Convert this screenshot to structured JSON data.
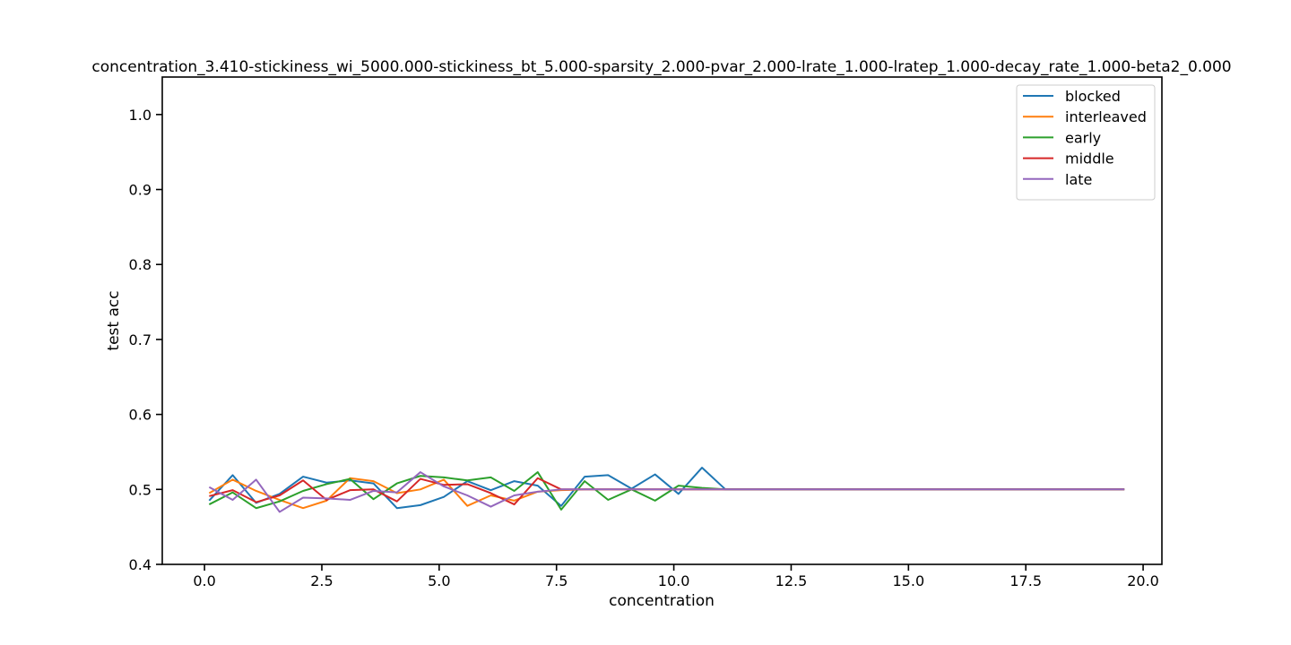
{
  "chart_data": {
    "type": "line",
    "title": "concentration_3.410-stickiness_wi_5000.000-stickiness_bt_5.000-sparsity_2.000-pvar_2.000-lrate_1.000-lratep_1.000-decay_rate_1.000-beta2_0.000",
    "xlabel": "concentration",
    "ylabel": "test acc",
    "xlim": [
      -0.9,
      20.4
    ],
    "ylim": [
      0.4,
      1.05
    ],
    "xticks": [
      0.0,
      2.5,
      5.0,
      7.5,
      10.0,
      12.5,
      15.0,
      17.5,
      20.0
    ],
    "xtick_labels": [
      "0.0",
      "2.5",
      "5.0",
      "7.5",
      "10.0",
      "12.5",
      "15.0",
      "17.5",
      "20.0"
    ],
    "yticks": [
      0.4,
      0.5,
      0.6,
      0.7,
      0.8,
      0.9,
      1.0
    ],
    "ytick_labels": [
      "0.4",
      "0.5",
      "0.6",
      "0.7",
      "0.8",
      "0.9",
      "1.0"
    ],
    "grid": false,
    "legend_position": "top-right",
    "x": [
      0.1,
      0.6,
      1.1,
      1.6,
      2.1,
      2.6,
      3.1,
      3.6,
      4.1,
      4.6,
      5.1,
      5.6,
      6.1,
      6.6,
      7.1,
      7.6,
      8.1,
      8.6,
      9.1,
      9.6,
      10.1,
      10.6,
      11.1,
      11.6,
      12.1,
      12.6,
      13.1,
      13.6,
      14.1,
      14.6,
      15.1,
      15.6,
      16.1,
      16.6,
      17.1,
      17.6,
      18.1,
      18.6,
      19.1,
      19.6
    ],
    "series": [
      {
        "name": "blocked",
        "color": "#1f77b4",
        "values": [
          0.485,
          0.519,
          0.482,
          0.494,
          0.517,
          0.509,
          0.512,
          0.508,
          0.475,
          0.479,
          0.49,
          0.511,
          0.499,
          0.511,
          0.505,
          0.478,
          0.517,
          0.519,
          0.501,
          0.52,
          0.494,
          0.529,
          0.5,
          0.5,
          0.5,
          0.5,
          0.5,
          0.5,
          0.5,
          0.5,
          0.5,
          0.5,
          0.5,
          0.5,
          0.5,
          0.5,
          0.5,
          0.5,
          0.5,
          0.5
        ]
      },
      {
        "name": "interleaved",
        "color": "#ff7f0e",
        "values": [
          0.495,
          0.513,
          0.498,
          0.486,
          0.475,
          0.485,
          0.515,
          0.511,
          0.495,
          0.5,
          0.513,
          0.478,
          0.492,
          0.485,
          0.497,
          0.499,
          0.5,
          0.5,
          0.5,
          0.5,
          0.5,
          0.5,
          0.5,
          0.5,
          0.5,
          0.5,
          0.5,
          0.5,
          0.5,
          0.5,
          0.5,
          0.5,
          0.5,
          0.5,
          0.5,
          0.5,
          0.5,
          0.5,
          0.5,
          0.5
        ]
      },
      {
        "name": "early",
        "color": "#2ca02c",
        "values": [
          0.48,
          0.496,
          0.475,
          0.484,
          0.498,
          0.507,
          0.514,
          0.487,
          0.508,
          0.518,
          0.516,
          0.512,
          0.516,
          0.498,
          0.523,
          0.473,
          0.511,
          0.486,
          0.5,
          0.485,
          0.505,
          0.502,
          0.5,
          0.5,
          0.5,
          0.5,
          0.5,
          0.5,
          0.5,
          0.5,
          0.5,
          0.5,
          0.5,
          0.5,
          0.5,
          0.5,
          0.5,
          0.5,
          0.5,
          0.5
        ]
      },
      {
        "name": "middle",
        "color": "#d62728",
        "values": [
          0.491,
          0.499,
          0.483,
          0.492,
          0.512,
          0.486,
          0.499,
          0.5,
          0.484,
          0.514,
          0.506,
          0.507,
          0.495,
          0.48,
          0.515,
          0.5,
          0.5,
          0.5,
          0.5,
          0.5,
          0.5,
          0.5,
          0.5,
          0.5,
          0.5,
          0.5,
          0.5,
          0.5,
          0.5,
          0.5,
          0.5,
          0.5,
          0.5,
          0.5,
          0.5,
          0.5,
          0.5,
          0.5,
          0.5,
          0.5
        ]
      },
      {
        "name": "late",
        "color": "#9467bd",
        "values": [
          0.503,
          0.486,
          0.513,
          0.47,
          0.489,
          0.488,
          0.486,
          0.498,
          0.496,
          0.523,
          0.504,
          0.492,
          0.477,
          0.492,
          0.497,
          0.5,
          0.5,
          0.5,
          0.5,
          0.5,
          0.5,
          0.5,
          0.5,
          0.5,
          0.5,
          0.5,
          0.5,
          0.5,
          0.5,
          0.5,
          0.5,
          0.5,
          0.5,
          0.5,
          0.5,
          0.5,
          0.5,
          0.5,
          0.5,
          0.5
        ]
      }
    ]
  }
}
